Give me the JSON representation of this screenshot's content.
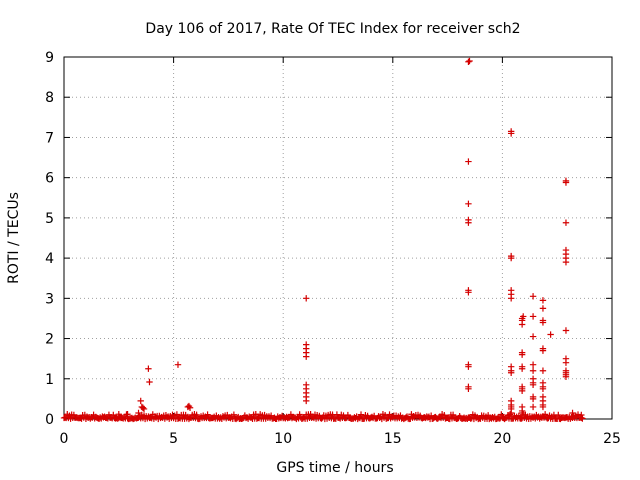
{
  "chart_data": {
    "type": "scatter",
    "title": "Day 106 of 2017, Rate Of TEC Index for receiver sch2",
    "xlabel": "GPS time / hours",
    "ylabel": "ROTI / TECUs",
    "xlim": [
      0,
      25
    ],
    "ylim": [
      0,
      9
    ],
    "xticks": [
      "0",
      "5",
      "10",
      "15",
      "20",
      "25"
    ],
    "yticks": [
      "0",
      "1",
      "2",
      "3",
      "4",
      "5",
      "6",
      "7",
      "8",
      "9"
    ],
    "grid": true,
    "marker": "+",
    "color": "#d40000",
    "baseline": {
      "x_start": 0.0,
      "x_end": 23.7,
      "y_min": 0.0,
      "y_max": 0.12
    },
    "points": [
      [
        3.5,
        0.45
      ],
      [
        3.55,
        0.3
      ],
      [
        3.6,
        0.28
      ],
      [
        3.65,
        0.25
      ],
      [
        3.85,
        1.25
      ],
      [
        3.9,
        0.92
      ],
      [
        3.4,
        0.15
      ],
      [
        2.9,
        0.12
      ],
      [
        2.5,
        0.12
      ],
      [
        5.2,
        1.35
      ],
      [
        5.65,
        0.3
      ],
      [
        5.7,
        0.32
      ],
      [
        5.75,
        0.28
      ],
      [
        11.05,
        3.0
      ],
      [
        11.05,
        1.85
      ],
      [
        11.05,
        1.75
      ],
      [
        11.05,
        1.65
      ],
      [
        11.05,
        1.55
      ],
      [
        11.05,
        0.85
      ],
      [
        11.05,
        0.75
      ],
      [
        11.05,
        0.65
      ],
      [
        11.05,
        0.55
      ],
      [
        11.05,
        0.45
      ],
      [
        18.45,
        8.88
      ],
      [
        18.5,
        8.9
      ],
      [
        18.45,
        6.4
      ],
      [
        18.45,
        5.35
      ],
      [
        18.45,
        4.95
      ],
      [
        18.45,
        4.88
      ],
      [
        18.45,
        3.2
      ],
      [
        18.45,
        3.15
      ],
      [
        18.45,
        1.35
      ],
      [
        18.45,
        1.3
      ],
      [
        18.45,
        0.8
      ],
      [
        18.45,
        0.75
      ],
      [
        20.4,
        7.15
      ],
      [
        20.4,
        7.1
      ],
      [
        20.4,
        4.05
      ],
      [
        20.4,
        4.0
      ],
      [
        20.4,
        3.2
      ],
      [
        20.4,
        3.1
      ],
      [
        20.4,
        3.0
      ],
      [
        20.4,
        1.3
      ],
      [
        20.4,
        1.2
      ],
      [
        20.4,
        1.15
      ],
      [
        20.4,
        0.45
      ],
      [
        20.4,
        0.35
      ],
      [
        20.4,
        0.3
      ],
      [
        20.4,
        0.25
      ],
      [
        20.4,
        0.15
      ],
      [
        20.9,
        2.5
      ],
      [
        20.9,
        2.45
      ],
      [
        20.9,
        2.35
      ],
      [
        20.95,
        2.55
      ],
      [
        20.9,
        1.65
      ],
      [
        20.9,
        1.6
      ],
      [
        20.9,
        1.3
      ],
      [
        20.9,
        1.25
      ],
      [
        20.9,
        0.8
      ],
      [
        20.9,
        0.75
      ],
      [
        20.9,
        0.7
      ],
      [
        20.9,
        0.3
      ],
      [
        20.9,
        0.2
      ],
      [
        20.9,
        0.15
      ],
      [
        21.4,
        3.05
      ],
      [
        21.4,
        2.55
      ],
      [
        21.4,
        2.05
      ],
      [
        21.4,
        1.35
      ],
      [
        21.4,
        1.2
      ],
      [
        21.4,
        1.0
      ],
      [
        21.4,
        0.9
      ],
      [
        21.4,
        0.85
      ],
      [
        21.4,
        0.55
      ],
      [
        21.4,
        0.5
      ],
      [
        21.4,
        0.3
      ],
      [
        21.85,
        2.95
      ],
      [
        21.85,
        2.75
      ],
      [
        21.85,
        2.45
      ],
      [
        21.85,
        2.4
      ],
      [
        21.85,
        1.75
      ],
      [
        21.85,
        1.7
      ],
      [
        21.85,
        1.2
      ],
      [
        21.85,
        0.9
      ],
      [
        21.85,
        0.8
      ],
      [
        21.85,
        0.75
      ],
      [
        21.85,
        0.55
      ],
      [
        21.85,
        0.45
      ],
      [
        21.85,
        0.35
      ],
      [
        21.85,
        0.3
      ],
      [
        22.2,
        2.1
      ],
      [
        22.9,
        5.92
      ],
      [
        22.9,
        5.88
      ],
      [
        22.9,
        4.88
      ],
      [
        22.9,
        4.2
      ],
      [
        22.9,
        4.1
      ],
      [
        22.9,
        4.0
      ],
      [
        22.9,
        3.9
      ],
      [
        22.9,
        2.2
      ],
      [
        22.9,
        1.5
      ],
      [
        22.9,
        1.4
      ],
      [
        22.9,
        1.2
      ],
      [
        22.9,
        1.15
      ],
      [
        22.9,
        1.1
      ],
      [
        22.9,
        1.05
      ],
      [
        23.2,
        0.15
      ],
      [
        23.6,
        0.1
      ]
    ]
  }
}
